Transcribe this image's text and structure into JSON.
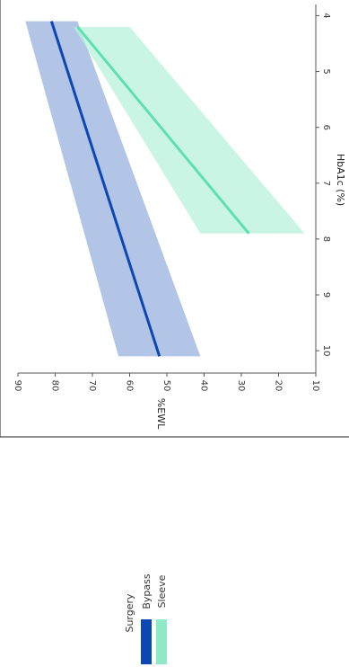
{
  "chart_data": {
    "type": "line",
    "orientation": "rotated-90-clockwise",
    "xlabel": "HbA1c (%)",
    "ylabel": "%EWL",
    "xlim": [
      3.8,
      10.4
    ],
    "ylim": [
      10,
      90
    ],
    "xticks": [
      "4",
      "5",
      "6",
      "7",
      "8",
      "9",
      "10"
    ],
    "yticks": [
      "90",
      "80",
      "70",
      "60",
      "50",
      "40",
      "30",
      "20",
      "10"
    ],
    "legend": {
      "title": "Surgery",
      "entries": [
        "Bypass",
        "Sleeve"
      ]
    },
    "series": [
      {
        "name": "Bypass",
        "color": "#0b47b5",
        "band_color": "#7e9fd6",
        "x": [
          4.1,
          10.1
        ],
        "y": [
          81,
          52
        ],
        "ci_lower": [
          74,
          41
        ],
        "ci_upper": [
          88,
          63
        ]
      },
      {
        "name": "Sleeve",
        "color": "#5fe0b0",
        "band_color": "#b8f2dc",
        "x": [
          4.2,
          7.9
        ],
        "y": [
          74,
          28
        ],
        "ci_lower": [
          60,
          13
        ],
        "ci_upper": [
          75,
          41
        ]
      }
    ]
  }
}
